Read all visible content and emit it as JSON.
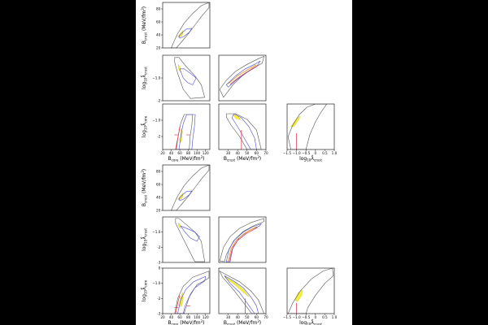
{
  "figure": {
    "panel_groups": [
      {
        "id": "upper"
      },
      {
        "id": "lower"
      }
    ]
  },
  "labels": {
    "b_crust": "B",
    "b_crust_sub": "crust",
    "b_core": "B",
    "b_core_sub": "core",
    "unit": " (MeV/fm",
    "unit_sup": "3",
    "unit_end": ")",
    "log_crust": "log",
    "log_crust_sub": "10",
    "log_crust_var": "λ̂",
    "log_crust_var_sub": "crust",
    "log_core_var_sub": "core"
  },
  "colors": {
    "outer_contour": "#555555",
    "inner_contour": "#4a4ad0",
    "fill": "#f5ef3a",
    "line_orange": "#e8900c",
    "line_red": "#e0405a"
  },
  "chart_data": [
    {
      "type": "area",
      "panel": "upper-Bcore-Bcrust",
      "xlim": [
        20,
        130
      ],
      "ylim": [
        20,
        90
      ],
      "xticks": [],
      "yticks": [
        20,
        40,
        60,
        80
      ],
      "outer": [
        [
          40,
          20
        ],
        [
          45,
          28
        ],
        [
          55,
          42
        ],
        [
          70,
          58
        ],
        [
          90,
          73
        ],
        [
          110,
          85
        ],
        [
          128,
          90
        ],
        [
          128,
          82
        ],
        [
          110,
          68
        ],
        [
          95,
          55
        ],
        [
          80,
          42
        ],
        [
          65,
          30
        ],
        [
          52,
          20
        ]
      ],
      "inner": [
        [
          58,
          38
        ],
        [
          65,
          43
        ],
        [
          75,
          49
        ],
        [
          88,
          50
        ],
        [
          82,
          44
        ],
        [
          70,
          38
        ],
        [
          60,
          35
        ]
      ],
      "fill": [
        [
          55,
          37
        ],
        [
          62,
          43
        ],
        [
          68,
          47
        ],
        [
          66,
          40
        ],
        [
          60,
          36
        ]
      ]
    },
    {
      "type": "area",
      "panel": "upper-Bcore-logcrust",
      "xlim": [
        20,
        130
      ],
      "ylim": [
        -2,
        0
      ],
      "xticks": [],
      "yticks": [
        -2,
        -1
      ],
      "outer": [
        [
          48,
          -0.1
        ],
        [
          58,
          -0.1
        ],
        [
          75,
          -0.5
        ],
        [
          95,
          -0.9
        ],
        [
          110,
          -1.3
        ],
        [
          118,
          -1.85
        ],
        [
          85,
          -1.9
        ],
        [
          68,
          -1.5
        ],
        [
          55,
          -0.8
        ],
        [
          48,
          -0.3
        ]
      ],
      "inner": [
        [
          60,
          -0.6
        ],
        [
          68,
          -1.0
        ],
        [
          78,
          -1.2
        ],
        [
          90,
          -1.3
        ],
        [
          98,
          -1.0
        ],
        [
          85,
          -0.8
        ],
        [
          70,
          -0.6
        ]
      ],
      "fill": [
        [
          56,
          -0.4
        ],
        [
          60,
          -0.5
        ],
        [
          62,
          -0.75
        ],
        [
          58,
          -0.65
        ]
      ]
    },
    {
      "type": "area",
      "panel": "upper-Bcrust-logcrust",
      "xlim": [
        20,
        70
      ],
      "ylim": [
        -2,
        0
      ],
      "xticks": [],
      "yticks": [],
      "outer": [
        [
          21,
          -1.5
        ],
        [
          28,
          -1.1
        ],
        [
          38,
          -0.7
        ],
        [
          50,
          -0.4
        ],
        [
          62,
          -0.15
        ],
        [
          68,
          -0.05
        ],
        [
          66,
          -0.35
        ],
        [
          55,
          -0.6
        ],
        [
          45,
          -0.9
        ],
        [
          35,
          -1.3
        ],
        [
          25,
          -1.85
        ]
      ],
      "inner": [
        [
          28,
          -1.3
        ],
        [
          38,
          -0.9
        ],
        [
          48,
          -0.6
        ],
        [
          58,
          -0.4
        ],
        [
          64,
          -0.25
        ],
        [
          60,
          -0.5
        ],
        [
          50,
          -0.75
        ],
        [
          40,
          -1.05
        ],
        [
          30,
          -1.4
        ]
      ],
      "line_orange": [
        [
          30,
          -1.25
        ],
        [
          40,
          -0.9
        ],
        [
          50,
          -0.65
        ],
        [
          60,
          -0.42
        ]
      ],
      "line_red": [
        [
          32,
          -1.28
        ],
        [
          42,
          -0.95
        ],
        [
          52,
          -0.68
        ],
        [
          62,
          -0.44
        ]
      ]
    },
    {
      "type": "area",
      "panel": "upper-Bcore-logcore",
      "xlim": [
        20,
        130
      ],
      "ylim": [
        -2.8,
        0
      ],
      "xticks": [
        20,
        40,
        60,
        80,
        100,
        120
      ],
      "yticks": [
        -2,
        -1
      ],
      "outer": [
        [
          52,
          -2.8
        ],
        [
          56,
          -2.0
        ],
        [
          62,
          -1.2
        ],
        [
          70,
          -0.65
        ],
        [
          90,
          -0.65
        ],
        [
          88,
          -1.3
        ],
        [
          84,
          -2.0
        ],
        [
          82,
          -2.8
        ]
      ],
      "inner": [
        [
          58,
          -2.8
        ],
        [
          62,
          -2.0
        ],
        [
          68,
          -1.2
        ],
        [
          76,
          -0.65
        ],
        [
          96,
          -0.65
        ],
        [
          94,
          -1.4
        ],
        [
          90,
          -2.2
        ],
        [
          88,
          -2.8
        ]
      ],
      "fill": [
        [
          60,
          -2.4
        ],
        [
          62,
          -1.9
        ],
        [
          64,
          -1.5
        ],
        [
          66,
          -1.7
        ],
        [
          64,
          -2.3
        ]
      ],
      "line_red": [
        [
          50,
          -2.8
        ],
        [
          56,
          -2.0
        ],
        [
          60,
          -1.4
        ]
      ],
      "marks": [
        [
          52,
          -1.9
        ],
        [
          80,
          -1.9
        ]
      ]
    },
    {
      "type": "area",
      "panel": "upper-Bcrust-logcore",
      "xlim": [
        20,
        70
      ],
      "ylim": [
        -2.8,
        0
      ],
      "xticks": [
        30,
        40,
        50,
        60,
        70
      ],
      "yticks": [],
      "outer": [
        [
          28,
          -0.6
        ],
        [
          38,
          -0.6
        ],
        [
          50,
          -0.95
        ],
        [
          60,
          -1.6
        ],
        [
          65,
          -2.8
        ],
        [
          50,
          -2.8
        ],
        [
          42,
          -2.0
        ],
        [
          33,
          -1.3
        ],
        [
          28,
          -0.8
        ]
      ],
      "inner": [
        [
          36,
          -0.6
        ],
        [
          44,
          -0.85
        ],
        [
          52,
          -1.4
        ],
        [
          58,
          -2.1
        ],
        [
          60,
          -2.8
        ],
        [
          54,
          -2.8
        ],
        [
          47,
          -2.1
        ],
        [
          40,
          -1.4
        ],
        [
          34,
          -0.85
        ]
      ],
      "fill": [
        [
          35,
          -0.65
        ],
        [
          40,
          -0.7
        ],
        [
          43,
          -0.95
        ],
        [
          38,
          -0.9
        ]
      ],
      "line_red": [
        [
          44,
          -2.8
        ],
        [
          44,
          -1.6
        ]
      ]
    },
    {
      "type": "area",
      "panel": "upper-logcrust-logcore",
      "xlim": [
        -1.5,
        1.0
      ],
      "ylim": [
        -2.8,
        0
      ],
      "xticks": [
        -1.5,
        -1.0,
        -0.5,
        0.0,
        0.5,
        1.0
      ],
      "yticks": [],
      "outer": [
        [
          -1.45,
          -2.0
        ],
        [
          -1.2,
          -1.3
        ],
        [
          -0.85,
          -0.65
        ],
        [
          -0.45,
          -0.2
        ],
        [
          0.0,
          0.0
        ],
        [
          0.6,
          0.0
        ],
        [
          0.3,
          -0.5
        ],
        [
          0.0,
          -1.1
        ],
        [
          -0.3,
          -1.9
        ],
        [
          -0.5,
          -2.8
        ],
        [
          -1.3,
          -2.8
        ]
      ],
      "fill": [
        [
          -1.3,
          -1.4
        ],
        [
          -1.0,
          -0.9
        ],
        [
          -0.8,
          -0.75
        ],
        [
          -0.9,
          -1.0
        ],
        [
          -1.15,
          -1.4
        ]
      ],
      "line_red": [
        [
          -1.0,
          -2.8
        ],
        [
          -1.0,
          -1.8
        ]
      ]
    },
    {
      "type": "area",
      "panel": "lower-Bcore-Bcrust",
      "xlim": [
        20,
        130
      ],
      "ylim": [
        20,
        90
      ],
      "xticks": [],
      "yticks": [
        20,
        40,
        60,
        80
      ],
      "outer": [
        [
          40,
          20
        ],
        [
          45,
          28
        ],
        [
          55,
          42
        ],
        [
          70,
          58
        ],
        [
          90,
          73
        ],
        [
          110,
          85
        ],
        [
          128,
          90
        ],
        [
          128,
          82
        ],
        [
          110,
          68
        ],
        [
          95,
          55
        ],
        [
          80,
          42
        ],
        [
          65,
          30
        ],
        [
          52,
          20
        ]
      ],
      "inner": [
        [
          58,
          38
        ],
        [
          65,
          43
        ],
        [
          75,
          49
        ],
        [
          88,
          50
        ],
        [
          82,
          44
        ],
        [
          70,
          38
        ],
        [
          60,
          35
        ]
      ],
      "fill": [
        [
          55,
          37
        ],
        [
          62,
          43
        ],
        [
          68,
          47
        ],
        [
          66,
          40
        ],
        [
          60,
          36
        ]
      ]
    },
    {
      "type": "area",
      "panel": "lower-Bcore-logcrust",
      "xlim": [
        20,
        130
      ],
      "ylim": [
        -3,
        0
      ],
      "xticks": [],
      "yticks": [
        -3,
        -2,
        -1
      ],
      "outer": [
        [
          50,
          -0.1
        ],
        [
          58,
          -0.1
        ],
        [
          75,
          -0.5
        ],
        [
          95,
          -1.0
        ],
        [
          110,
          -1.6
        ],
        [
          118,
          -2.95
        ],
        [
          95,
          -2.95
        ],
        [
          78,
          -2.0
        ],
        [
          62,
          -1.1
        ],
        [
          50,
          -0.4
        ]
      ],
      "inner": [
        [
          62,
          -0.6
        ],
        [
          72,
          -1.0
        ],
        [
          85,
          -1.4
        ],
        [
          100,
          -1.6
        ],
        [
          106,
          -1.3
        ],
        [
          95,
          -1.0
        ],
        [
          80,
          -0.8
        ]
      ],
      "fill": [
        [
          56,
          -0.4
        ],
        [
          60,
          -0.5
        ],
        [
          62,
          -0.75
        ],
        [
          58,
          -0.65
        ]
      ]
    },
    {
      "type": "area",
      "panel": "lower-Bcrust-logcrust",
      "xlim": [
        20,
        70
      ],
      "ylim": [
        -3,
        0
      ],
      "xticks": [],
      "yticks": [],
      "outer": [
        [
          21,
          -2.9
        ],
        [
          25,
          -2.0
        ],
        [
          32,
          -1.3
        ],
        [
          42,
          -0.75
        ],
        [
          55,
          -0.35
        ],
        [
          68,
          -0.1
        ],
        [
          68,
          -0.3
        ],
        [
          58,
          -0.55
        ],
        [
          46,
          -0.95
        ],
        [
          36,
          -1.55
        ],
        [
          28,
          -2.5
        ],
        [
          26,
          -2.95
        ]
      ],
      "inner": [
        [
          28,
          -2.95
        ],
        [
          31,
          -2.1
        ],
        [
          37,
          -1.5
        ],
        [
          46,
          -1.0
        ],
        [
          56,
          -0.65
        ],
        [
          65,
          -0.45
        ],
        [
          63,
          -0.6
        ],
        [
          52,
          -0.9
        ],
        [
          42,
          -1.35
        ],
        [
          35,
          -2.0
        ],
        [
          32,
          -2.95
        ]
      ],
      "line_orange": [
        [
          30,
          -2.9
        ],
        [
          33,
          -2.1
        ],
        [
          39,
          -1.5
        ],
        [
          48,
          -1.05
        ],
        [
          60,
          -0.65
        ]
      ],
      "line_red": [
        [
          31,
          -2.95
        ],
        [
          34,
          -2.15
        ],
        [
          40,
          -1.55
        ],
        [
          49,
          -1.1
        ],
        [
          61,
          -0.7
        ]
      ]
    },
    {
      "type": "area",
      "panel": "lower-Bcore-logcore",
      "xlim": [
        20,
        130
      ],
      "ylim": [
        -3,
        0
      ],
      "xticks": [
        20,
        40,
        60,
        80,
        100,
        120
      ],
      "yticks": [
        -3,
        -2,
        -1,
        0
      ],
      "outer": [
        [
          48,
          -3.0
        ],
        [
          55,
          -2.0
        ],
        [
          68,
          -1.2
        ],
        [
          90,
          -0.6
        ],
        [
          128,
          -0.2
        ],
        [
          128,
          -0.65
        ],
        [
          100,
          -1.1
        ],
        [
          85,
          -1.7
        ],
        [
          72,
          -2.5
        ],
        [
          68,
          -3.0
        ]
      ],
      "inner": [
        [
          55,
          -3.0
        ],
        [
          62,
          -2.1
        ],
        [
          74,
          -1.4
        ],
        [
          92,
          -0.9
        ],
        [
          120,
          -0.55
        ],
        [
          118,
          -0.85
        ],
        [
          95,
          -1.3
        ],
        [
          82,
          -1.9
        ],
        [
          74,
          -2.6
        ],
        [
          70,
          -3.0
        ]
      ],
      "fill": [
        [
          58,
          -2.5
        ],
        [
          62,
          -2.0
        ],
        [
          66,
          -1.6
        ],
        [
          68,
          -2.0
        ],
        [
          64,
          -2.5
        ]
      ],
      "line_red": [
        [
          50,
          -3.0
        ],
        [
          56,
          -2.2
        ],
        [
          60,
          -1.8
        ]
      ],
      "marks": [
        [
          52,
          -2.6
        ],
        [
          80,
          -2.5
        ]
      ]
    },
    {
      "type": "area",
      "panel": "lower-Bcrust-logcore",
      "xlim": [
        20,
        70
      ],
      "ylim": [
        -3,
        0
      ],
      "xticks": [
        30,
        40,
        50,
        60,
        70
      ],
      "yticks": [],
      "outer": [
        [
          21,
          -0.2
        ],
        [
          30,
          -0.5
        ],
        [
          42,
          -0.9
        ],
        [
          54,
          -1.5
        ],
        [
          62,
          -2.1
        ],
        [
          68,
          -3.0
        ],
        [
          55,
          -3.0
        ],
        [
          44,
          -2.1
        ],
        [
          34,
          -1.3
        ],
        [
          24,
          -0.6
        ]
      ],
      "inner": [
        [
          26,
          -0.5
        ],
        [
          36,
          -0.85
        ],
        [
          46,
          -1.3
        ],
        [
          54,
          -1.9
        ],
        [
          60,
          -2.5
        ],
        [
          62,
          -3.0
        ],
        [
          58,
          -3.0
        ],
        [
          50,
          -2.3
        ],
        [
          42,
          -1.6
        ],
        [
          32,
          -1.0
        ]
      ],
      "fill": [
        [
          26,
          -0.55
        ],
        [
          36,
          -0.9
        ],
        [
          46,
          -1.4
        ],
        [
          52,
          -1.9
        ],
        [
          46,
          -1.6
        ],
        [
          36,
          -1.05
        ],
        [
          28,
          -0.7
        ]
      ],
      "line_red": [
        [
          48,
          -3.0
        ],
        [
          48,
          -2.0
        ]
      ]
    },
    {
      "type": "area",
      "panel": "lower-logcrust-logcore",
      "xlim": [
        -1.5,
        1.0
      ],
      "ylim": [
        -3,
        0
      ],
      "xticks": [
        -1.5,
        -1.0,
        -0.5,
        0.0,
        0.5,
        1.0
      ],
      "yticks": [],
      "outer": [
        [
          -1.45,
          -3.0
        ],
        [
          -1.2,
          -2.3
        ],
        [
          -0.8,
          -1.5
        ],
        [
          -0.2,
          -0.7
        ],
        [
          0.4,
          -0.2
        ],
        [
          0.9,
          0.0
        ],
        [
          0.95,
          -0.5
        ],
        [
          0.5,
          -1.0
        ],
        [
          0.0,
          -1.8
        ],
        [
          -0.4,
          -2.6
        ],
        [
          -0.5,
          -3.0
        ]
      ],
      "fill": [
        [
          -1.1,
          -2.1
        ],
        [
          -0.9,
          -1.6
        ],
        [
          -0.7,
          -1.45
        ],
        [
          -0.72,
          -1.8
        ],
        [
          -0.95,
          -2.2
        ]
      ],
      "line_red": [
        [
          -1.0,
          -3.0
        ],
        [
          -1.0,
          -2.3
        ]
      ]
    }
  ]
}
